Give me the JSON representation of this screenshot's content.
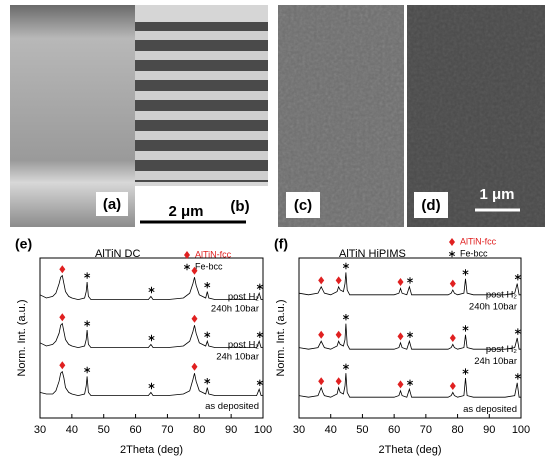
{
  "panels": [
    {
      "label": "(a)"
    },
    {
      "label": "(b)"
    },
    {
      "label": "(c)"
    },
    {
      "label": "(d)"
    }
  ],
  "scale_bars": [
    {
      "label": "2 μm"
    },
    {
      "label": "1 μm"
    }
  ],
  "chart_data": [
    {
      "type": "line",
      "panel_label": "(e)",
      "title": "AlTiN  DC",
      "xlabel": "2Theta (deg)",
      "ylabel": "Norm. Int. (a.u.)",
      "xlim": [
        30,
        100
      ],
      "xticks": [
        30,
        40,
        50,
        60,
        70,
        80,
        90,
        100
      ],
      "ylim": [
        0,
        10
      ],
      "legend": [
        {
          "name": "AlTiN-fcc",
          "color": "#e02020",
          "symbol": "diamond"
        },
        {
          "name": "Fe-bcc",
          "color": "#000000",
          "symbol": "star"
        }
      ],
      "series": [
        {
          "labels": [
            "as deposited"
          ],
          "color": "#000000",
          "x": [
            30,
            32,
            34,
            35,
            36,
            36.5,
            37,
            37.5,
            38,
            39,
            40,
            42,
            44,
            44.5,
            44.8,
            45.2,
            46,
            50,
            55,
            60,
            64,
            64.8,
            65.5,
            70,
            75,
            77,
            78,
            78.5,
            79,
            80,
            82,
            82.5,
            83,
            85,
            90,
            95,
            98,
            98.8,
            99.4,
            100
          ],
          "values": [
            1.6,
            1.5,
            1.5,
            1.7,
            2.3,
            2.8,
            2.9,
            2.5,
            1.9,
            1.6,
            1.5,
            1.4,
            1.5,
            2.0,
            2.6,
            1.6,
            1.4,
            1.4,
            1.4,
            1.4,
            1.4,
            1.6,
            1.4,
            1.4,
            1.5,
            1.7,
            2.4,
            2.8,
            2.3,
            1.7,
            1.5,
            1.9,
            1.5,
            1.4,
            1.4,
            1.4,
            1.4,
            1.8,
            1.4,
            1.4
          ],
          "markers": [
            {
              "x": 37,
              "y": 3.3,
              "kind": 0
            },
            {
              "x": 78.5,
              "y": 3.2,
              "kind": 0
            },
            {
              "x": 44.8,
              "y": 3.0,
              "kind": 1
            },
            {
              "x": 65,
              "y": 2.0,
              "kind": 1
            },
            {
              "x": 82.5,
              "y": 2.3,
              "kind": 1
            },
            {
              "x": 99,
              "y": 2.2,
              "kind": 1
            }
          ]
        },
        {
          "labels": [
            "post H₂",
            "24h 10bar"
          ],
          "color": "#000000",
          "x": [
            30,
            32,
            34,
            35,
            36,
            36.5,
            37,
            37.5,
            38,
            39,
            40,
            42,
            44,
            44.5,
            44.8,
            45.2,
            46,
            50,
            55,
            60,
            64,
            64.8,
            65.5,
            70,
            75,
            77,
            78,
            78.5,
            79,
            80,
            82,
            82.5,
            83,
            85,
            90,
            95,
            98,
            98.8,
            99.4,
            100
          ],
          "values": [
            4.7,
            4.5,
            4.6,
            4.8,
            5.3,
            5.8,
            5.9,
            5.4,
            4.9,
            4.6,
            4.5,
            4.4,
            4.5,
            4.9,
            5.5,
            4.6,
            4.4,
            4.4,
            4.4,
            4.4,
            4.4,
            4.6,
            4.4,
            4.4,
            4.5,
            4.8,
            5.4,
            5.8,
            5.3,
            4.7,
            4.5,
            4.8,
            4.5,
            4.4,
            4.4,
            4.4,
            4.4,
            4.8,
            4.4,
            4.4
          ],
          "markers": [
            {
              "x": 37,
              "y": 6.3,
              "kind": 0
            },
            {
              "x": 78.5,
              "y": 6.2,
              "kind": 0
            },
            {
              "x": 44.8,
              "y": 5.9,
              "kind": 1
            },
            {
              "x": 65,
              "y": 5.0,
              "kind": 1
            },
            {
              "x": 82.5,
              "y": 5.2,
              "kind": 1
            },
            {
              "x": 99,
              "y": 5.2,
              "kind": 1
            }
          ]
        },
        {
          "labels": [
            "post H₂",
            "240h 10bar"
          ],
          "color": "#000000",
          "x": [
            30,
            32,
            34,
            35,
            36,
            36.5,
            37,
            37.5,
            38,
            39,
            40,
            42,
            44,
            44.5,
            44.8,
            45.2,
            46,
            50,
            55,
            60,
            64,
            64.8,
            65.5,
            70,
            75,
            77,
            78,
            78.5,
            79,
            80,
            82,
            82.5,
            83,
            85,
            90,
            95,
            98,
            98.8,
            99.4,
            100
          ],
          "values": [
            7.7,
            7.5,
            7.6,
            7.8,
            8.4,
            8.8,
            8.9,
            8.4,
            7.9,
            7.6,
            7.5,
            7.4,
            7.5,
            7.9,
            8.5,
            7.6,
            7.4,
            7.4,
            7.4,
            7.4,
            7.4,
            7.6,
            7.4,
            7.4,
            7.5,
            7.8,
            8.4,
            8.8,
            8.3,
            7.7,
            7.5,
            7.9,
            7.5,
            7.4,
            7.4,
            7.4,
            7.4,
            7.8,
            7.4,
            7.4
          ],
          "markers": [
            {
              "x": 37,
              "y": 9.3,
              "kind": 0
            },
            {
              "x": 78.5,
              "y": 9.2,
              "kind": 0
            },
            {
              "x": 44.8,
              "y": 8.9,
              "kind": 1
            },
            {
              "x": 65,
              "y": 8.0,
              "kind": 1
            },
            {
              "x": 82.5,
              "y": 8.3,
              "kind": 1
            },
            {
              "x": 99,
              "y": 8.2,
              "kind": 1
            }
          ]
        }
      ]
    },
    {
      "type": "line",
      "panel_label": "(f)",
      "title": "AlTiN HiPIMS",
      "xlabel": "2Theta (deg)",
      "ylabel": "Norm. Int. (a.u.)",
      "xlim": [
        30,
        100
      ],
      "xticks": [
        30,
        40,
        50,
        60,
        70,
        80,
        90,
        100
      ],
      "ylim": [
        0,
        10
      ],
      "legend": [
        {
          "name": "AlTiN-fcc",
          "color": "#e02020",
          "symbol": "diamond"
        },
        {
          "name": "Fe-bcc",
          "color": "#000000",
          "symbol": "star"
        }
      ],
      "series": [
        {
          "labels": [
            "as deposited"
          ],
          "color": "#000000",
          "x": [
            30,
            33,
            36,
            37,
            37.5,
            38,
            40,
            42,
            42.5,
            43,
            44,
            44.5,
            44.8,
            45.2,
            46,
            50,
            55,
            60,
            61.5,
            62,
            62.5,
            64,
            64.8,
            65.5,
            70,
            75,
            77,
            78,
            78.5,
            79,
            80,
            82,
            82.5,
            83,
            85,
            90,
            95,
            98,
            98.8,
            99.4,
            100
          ],
          "values": [
            1.4,
            1.3,
            1.4,
            1.9,
            1.6,
            1.4,
            1.3,
            1.5,
            1.9,
            1.6,
            1.5,
            2.0,
            2.8,
            1.6,
            1.3,
            1.3,
            1.3,
            1.3,
            1.4,
            1.7,
            1.4,
            1.3,
            1.8,
            1.3,
            1.3,
            1.3,
            1.3,
            1.4,
            1.6,
            1.4,
            1.3,
            1.4,
            2.5,
            1.4,
            1.3,
            1.3,
            1.3,
            1.4,
            2.2,
            1.3,
            1.3
          ],
          "markers": [
            {
              "x": 37,
              "y": 2.3,
              "kind": 0
            },
            {
              "x": 42.5,
              "y": 2.3,
              "kind": 0
            },
            {
              "x": 62,
              "y": 2.1,
              "kind": 0
            },
            {
              "x": 78.5,
              "y": 2.0,
              "kind": 0
            },
            {
              "x": 44.8,
              "y": 3.2,
              "kind": 1
            },
            {
              "x": 65,
              "y": 2.2,
              "kind": 1
            },
            {
              "x": 82.5,
              "y": 2.9,
              "kind": 1
            },
            {
              "x": 99,
              "y": 2.6,
              "kind": 1
            }
          ]
        },
        {
          "labels": [
            "post H₂",
            "24h 10bar"
          ],
          "color": "#000000",
          "x": [
            30,
            33,
            36,
            37,
            37.5,
            38,
            40,
            42,
            42.5,
            43,
            44,
            44.5,
            44.8,
            45.2,
            46,
            50,
            55,
            60,
            61.5,
            62,
            62.5,
            64,
            64.8,
            65.5,
            70,
            75,
            77,
            78,
            78.5,
            79,
            80,
            82,
            82.5,
            83,
            85,
            90,
            95,
            98,
            98.8,
            99.4,
            100
          ],
          "values": [
            4.4,
            4.3,
            4.4,
            4.8,
            4.6,
            4.4,
            4.3,
            4.5,
            4.8,
            4.6,
            4.5,
            4.9,
            5.9,
            4.6,
            4.3,
            4.3,
            4.3,
            4.3,
            4.4,
            4.7,
            4.4,
            4.3,
            4.8,
            4.3,
            4.3,
            4.3,
            4.3,
            4.4,
            4.6,
            4.4,
            4.3,
            4.4,
            5.2,
            4.4,
            4.3,
            4.3,
            4.3,
            4.4,
            5.0,
            4.3,
            4.3
          ],
          "markers": [
            {
              "x": 37,
              "y": 5.2,
              "kind": 0
            },
            {
              "x": 42.5,
              "y": 5.2,
              "kind": 0
            },
            {
              "x": 62,
              "y": 5.1,
              "kind": 0
            },
            {
              "x": 78.5,
              "y": 5.0,
              "kind": 0
            },
            {
              "x": 44.8,
              "y": 6.3,
              "kind": 1
            },
            {
              "x": 65,
              "y": 5.2,
              "kind": 1
            },
            {
              "x": 82.5,
              "y": 5.6,
              "kind": 1
            },
            {
              "x": 99,
              "y": 5.4,
              "kind": 1
            }
          ]
        },
        {
          "labels": [
            "post H₂",
            "240h 10bar"
          ],
          "color": "#000000",
          "x": [
            30,
            33,
            36,
            37,
            37.5,
            38,
            40,
            42,
            42.5,
            43,
            44,
            44.5,
            44.8,
            45.2,
            46,
            50,
            55,
            60,
            61.5,
            62,
            62.5,
            64,
            64.8,
            65.5,
            70,
            75,
            77,
            78,
            78.5,
            79,
            80,
            82,
            82.5,
            83,
            85,
            90,
            95,
            98,
            98.8,
            99.4,
            100
          ],
          "values": [
            7.8,
            7.7,
            7.8,
            8.2,
            8.0,
            7.8,
            7.7,
            7.9,
            8.2,
            8.0,
            7.9,
            8.4,
            9.1,
            8.0,
            7.7,
            7.7,
            7.7,
            7.7,
            7.8,
            8.1,
            7.8,
            7.7,
            8.2,
            7.7,
            7.7,
            7.7,
            7.7,
            7.8,
            8.0,
            7.8,
            7.7,
            7.8,
            8.7,
            7.8,
            7.7,
            7.7,
            7.7,
            7.8,
            8.4,
            7.7,
            7.7
          ],
          "markers": [
            {
              "x": 37,
              "y": 8.6,
              "kind": 0
            },
            {
              "x": 42.5,
              "y": 8.6,
              "kind": 0
            },
            {
              "x": 62,
              "y": 8.5,
              "kind": 0
            },
            {
              "x": 78.5,
              "y": 8.4,
              "kind": 0
            },
            {
              "x": 44.8,
              "y": 9.5,
              "kind": 1
            },
            {
              "x": 65,
              "y": 8.6,
              "kind": 1
            },
            {
              "x": 82.5,
              "y": 9.1,
              "kind": 1
            },
            {
              "x": 99,
              "y": 8.8,
              "kind": 1
            }
          ]
        }
      ]
    }
  ]
}
